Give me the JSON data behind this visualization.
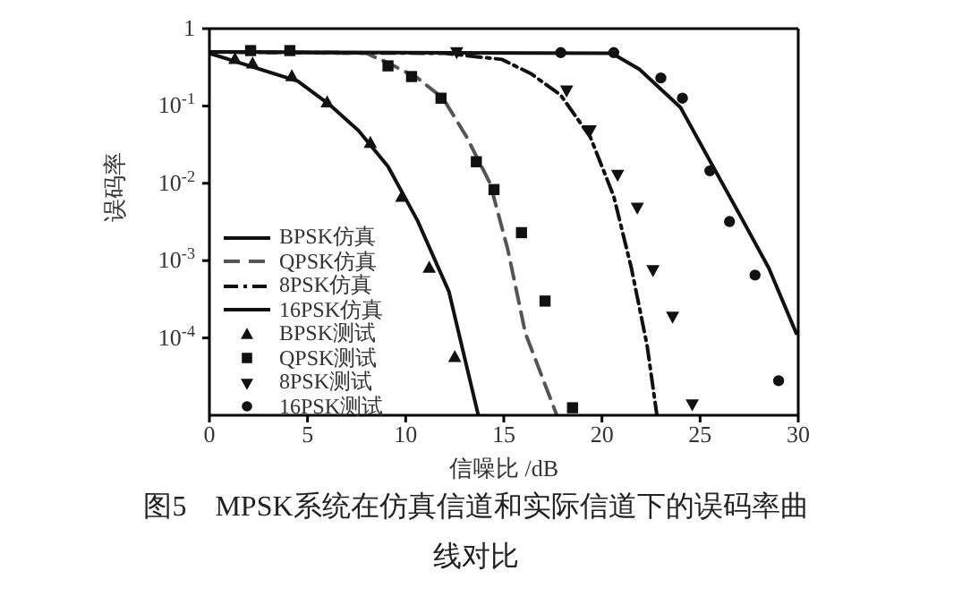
{
  "chart_data": {
    "type": "line",
    "title": "图5　MPSK系统在仿真信道和实际信道下的误码率曲线对比",
    "xlabel": "信噪比 /dB",
    "ylabel": "误码率",
    "log": "y",
    "xlim": [
      0,
      30
    ],
    "xticks": [
      0,
      5,
      10,
      15,
      20,
      25,
      30
    ],
    "ylim": [
      1e-05,
      1
    ],
    "yticks": [
      {
        "value": 1,
        "label": "1"
      },
      {
        "value": 0.1,
        "label": "10$^{-1}$"
      },
      {
        "value": 0.01,
        "label": "10$^{-2}$"
      },
      {
        "value": 0.001,
        "label": "10$^{-3}$"
      },
      {
        "value": 0.0001,
        "label": "10$^{-4}$"
      }
    ],
    "grid": false,
    "legend": "bottom left",
    "series": [
      {
        "name": "BPSK仿真",
        "color": "#111111",
        "line_style": "solid",
        "marker": "none",
        "x": [
          0,
          4.5,
          6.1,
          7.6,
          9.1,
          10.6,
          12.2,
          13.7
        ],
        "values": [
          0.48,
          0.21,
          0.105,
          0.048,
          0.0165,
          0.0033,
          0.0004,
          1e-05
        ]
      },
      {
        "name": "QPSK仿真",
        "color": "#555555",
        "line_style": "dashed",
        "marker": "none",
        "x": [
          0,
          8,
          9.1,
          10.6,
          11.9,
          13.1,
          14.3,
          15.2,
          16.1,
          17.7
        ],
        "values": [
          0.5,
          0.48,
          0.36,
          0.23,
          0.126,
          0.04,
          0.01,
          0.0014,
          0.000115,
          1e-05
        ]
      },
      {
        "name": "8PSK仿真",
        "color": "#111111",
        "line_style": "dashdot",
        "marker": "none",
        "x": [
          0,
          12,
          14.9,
          16.4,
          17.9,
          19.4,
          20.6,
          21.5,
          22.3,
          22.8
        ],
        "values": [
          0.5,
          0.48,
          0.4,
          0.26,
          0.138,
          0.04,
          0.0068,
          0.0008,
          8e-05,
          1e-05
        ]
      },
      {
        "name": "16PSK仿真",
        "color": "#111111",
        "line_style": "solid",
        "marker": "none",
        "x": [
          0,
          20.5,
          21.9,
          24,
          25.5,
          27,
          28.5,
          29.9
        ],
        "values": [
          0.5,
          0.48,
          0.3,
          0.096,
          0.0195,
          0.004,
          0.0008,
          0.000115
        ]
      },
      {
        "name": "BPSK测试",
        "type": "scatter",
        "color": "#111111",
        "marker": "triangle",
        "x": [
          1.3,
          2.2,
          4.2,
          6,
          8.2,
          9.8,
          11.2,
          12.5
        ],
        "values": [
          0.4,
          0.35,
          0.24,
          0.11,
          0.033,
          0.0066,
          0.0008,
          5.6e-05
        ]
      },
      {
        "name": "QPSK测试",
        "type": "scatter",
        "color": "#111111",
        "marker": "square",
        "x": [
          2.1,
          4.1,
          9.1,
          10.3,
          11.8,
          13.6,
          14.5,
          15.9,
          17.1,
          18.5
        ],
        "values": [
          0.52,
          0.52,
          0.33,
          0.24,
          0.126,
          0.019,
          0.0083,
          0.0023,
          0.0003,
          1.25e-05
        ]
      },
      {
        "name": "8PSK测试",
        "type": "scatter",
        "color": "#111111",
        "marker": "triangle-down",
        "x": [
          12.6,
          18.2,
          19.4,
          20.8,
          21.8,
          22.6,
          23.6,
          24.6
        ],
        "values": [
          0.5,
          0.16,
          0.049,
          0.013,
          0.0049,
          0.00076,
          0.00019,
          1.4e-05
        ]
      },
      {
        "name": "16PSK测试",
        "type": "scatter",
        "color": "#111111",
        "marker": "circle",
        "x": [
          17.9,
          20.6,
          23,
          24.1,
          25.5,
          26.5,
          27.8,
          29
        ],
        "values": [
          0.49,
          0.49,
          0.23,
          0.126,
          0.0145,
          0.0032,
          0.00065,
          2.8e-05
        ]
      }
    ]
  }
}
